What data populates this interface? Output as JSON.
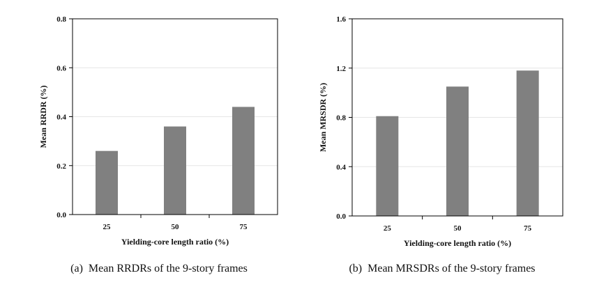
{
  "chart_data": [
    {
      "type": "bar",
      "caption": "(a)  Mean RRDRs of the 9-story frames",
      "categories": [
        "25",
        "50",
        "75"
      ],
      "values": [
        0.26,
        0.36,
        0.44
      ],
      "xlabel": "Yielding-core length ratio (%)",
      "ylabel": "Mean RRDR (%)",
      "ylim": [
        0,
        0.8
      ],
      "yticks": [
        "0.0",
        "0.2",
        "0.4",
        "0.6",
        "0.8"
      ],
      "bar_color": "#808080",
      "grid": true
    },
    {
      "type": "bar",
      "caption": "(b)  Mean MRSDRs of the 9-story frames",
      "categories": [
        "25",
        "50",
        "75"
      ],
      "values": [
        0.81,
        1.05,
        1.18
      ],
      "xlabel": "Yielding-core length ratio (%)",
      "ylabel": "Mean MRSDR (%)",
      "ylim": [
        0,
        1.6
      ],
      "yticks": [
        "0.0",
        "0.4",
        "0.8",
        "1.2",
        "1.6"
      ],
      "bar_color": "#808080",
      "grid": true
    }
  ]
}
